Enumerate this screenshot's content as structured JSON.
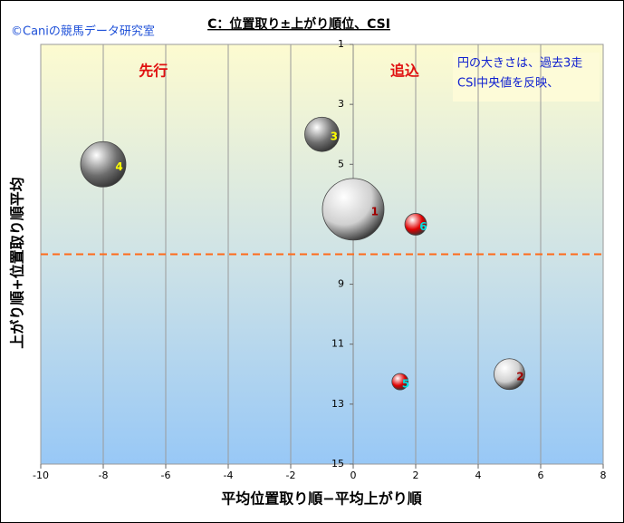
{
  "chart_data": {
    "type": "bubble",
    "title": "C：位置取り±上がり順位、CSI",
    "watermark": "©Caniの競馬データ研究室",
    "x_label": "平均位置取り順−平均上がり順",
    "y_label": "上がり順+位置取り順平均",
    "xlim": [
      -10,
      8
    ],
    "xticks": [
      -10,
      -8,
      -6,
      -4,
      -2,
      0,
      2,
      4,
      6,
      8
    ],
    "ylim": [
      1,
      15
    ],
    "yticks": [
      1,
      3,
      5,
      7,
      9,
      11,
      13,
      15
    ],
    "y_reversed": true,
    "grid": true,
    "reference_line": {
      "y": 8,
      "color": "#ff6a1a"
    },
    "annotations": [
      {
        "text": "先行",
        "x": -6.4,
        "y": 1.9
      },
      {
        "text": "追込",
        "x": 1.65,
        "y": 1.9
      }
    ],
    "note": [
      "円の大きさは、過去3走",
      "CSI中央値を反映、"
    ],
    "points": [
      {
        "label": "4",
        "x": -8,
        "y": 5,
        "size": 25,
        "color": "#6e6e6e",
        "label_color": "#ffff00"
      },
      {
        "label": "3",
        "x": -1,
        "y": 4,
        "size": 19,
        "color": "#6e6e6e",
        "label_color": "#ffff00"
      },
      {
        "label": "1",
        "x": 0,
        "y": 6.5,
        "size": 34,
        "color": "#d0d0d0",
        "label_color": "#a00000"
      },
      {
        "label": "6",
        "x": 2,
        "y": 7,
        "size": 12,
        "color": "#e00000",
        "label_color": "#00e0e0"
      },
      {
        "label": "5",
        "x": 1.5,
        "y": 12.25,
        "size": 9,
        "color": "#e00000",
        "label_color": "#00e0e0"
      },
      {
        "label": "2",
        "x": 5,
        "y": 12,
        "size": 17,
        "color": "#d0d0d0",
        "label_color": "#a00000"
      }
    ]
  }
}
